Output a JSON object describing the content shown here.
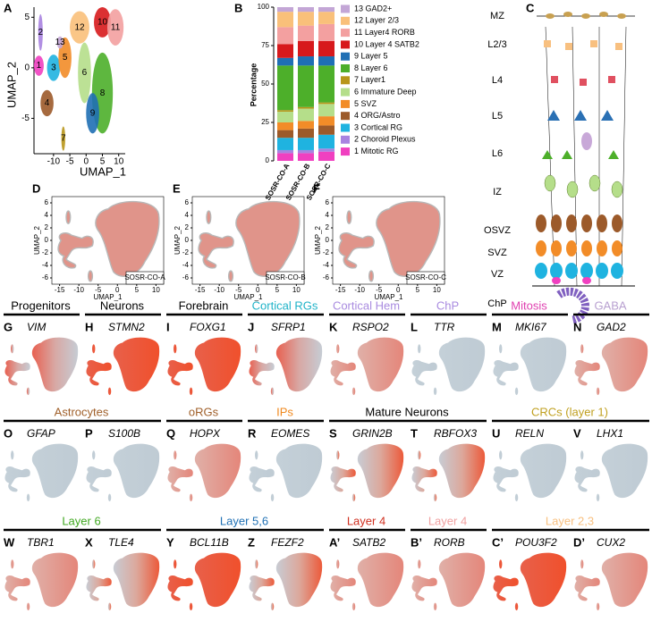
{
  "umap_a": {
    "letter": "A",
    "xlabel": "UMAP_1",
    "ylabel": "UMAP_2",
    "xlim": [
      -16,
      12
    ],
    "ylim": [
      -8.5,
      6
    ],
    "xticks": [
      -10,
      -5,
      0,
      5,
      10
    ],
    "yticks": [
      -5,
      0,
      5
    ],
    "cluster_labels": [
      "1",
      "2",
      "3",
      "4",
      "5",
      "6",
      "7",
      "8",
      "9",
      "10",
      "11",
      "12",
      "13"
    ]
  },
  "chart_data": {
    "type": "bar",
    "stacked": true,
    "letter": "B",
    "ylabel": "Percentage",
    "ylim": [
      0,
      100
    ],
    "yticks": [
      0,
      25,
      50,
      75,
      100
    ],
    "categories": [
      "SOSR-CO-A",
      "SOSR-CO-B",
      "SOSR-CO-C"
    ],
    "series": [
      {
        "name": "13 GAD2+",
        "color": "#c3a6d6",
        "values": [
          3,
          3,
          3
        ]
      },
      {
        "name": "12 Layer 2/3",
        "color": "#f9c07a",
        "values": [
          10,
          9,
          8
        ]
      },
      {
        "name": "11 Layer4 RORB",
        "color": "#f3a0a0",
        "values": [
          11,
          10,
          11
        ]
      },
      {
        "name": "10 Layer 4 SATB2",
        "color": "#d7191c",
        "values": [
          9,
          10,
          10
        ]
      },
      {
        "name": "9 Layer 5",
        "color": "#1f6fb4",
        "values": [
          5,
          6,
          6
        ]
      },
      {
        "name": "8 Layer 6",
        "color": "#4daf2a",
        "values": [
          29,
          27,
          24
        ]
      },
      {
        "name": "7 Layer1",
        "color": "#b8961a",
        "values": [
          1,
          1,
          1
        ]
      },
      {
        "name": "6 Immature Deep",
        "color": "#b5de8a",
        "values": [
          7,
          8,
          8
        ]
      },
      {
        "name": "5 SVZ",
        "color": "#f28c28",
        "values": [
          5,
          5,
          6
        ]
      },
      {
        "name": "4 ORG/Astro",
        "color": "#9c5a2a",
        "values": [
          5,
          6,
          6
        ]
      },
      {
        "name": "3 Cortical RG",
        "color": "#1fb3e0",
        "values": [
          8,
          8,
          9
        ]
      },
      {
        "name": "2 Choroid Plexus",
        "color": "#a883e0",
        "values": [
          2,
          2,
          2
        ]
      },
      {
        "name": "1 Mitotic RG",
        "color": "#f040c0",
        "values": [
          5,
          5,
          6
        ]
      }
    ]
  },
  "diagram_c": {
    "letter": "C",
    "layers": [
      "MZ",
      "L2/3",
      "L4",
      "L5",
      "L6",
      "IZ",
      "OSVZ",
      "SVZ",
      "VZ",
      "ChP"
    ]
  },
  "sample_umaps": {
    "letters": [
      "D",
      "E",
      "F"
    ],
    "samples": [
      "SOSR-CO-A",
      "SOSR-CO-B",
      "SOSR-CO-C"
    ],
    "xlabel": "UMAP_1",
    "ylabel": "UMAP_2",
    "xlim": [
      -17,
      12
    ],
    "ylim": [
      -7,
      7
    ],
    "xticks": [
      -15,
      -10,
      -5,
      0,
      5,
      10
    ],
    "yticks": [
      -6,
      -4,
      -2,
      0,
      2,
      4,
      6
    ]
  },
  "marker_rows": [
    {
      "groups": [
        {
          "title": "Progenitors",
          "color": "#000000"
        },
        {
          "title": "Neurons",
          "color": "#000000"
        },
        {
          "title": "Forebrain",
          "color": "#000000"
        },
        {
          "title": "Cortical RGs",
          "color": "#1fb3c8"
        },
        {
          "title": "Cortical Hem",
          "color": "#a98be0"
        },
        {
          "title": "ChP",
          "color": "#a98be0"
        },
        {
          "title": "Mitosis",
          "color": "#e040b0"
        },
        {
          "title": "GABA",
          "color": "#b8a0d0"
        }
      ],
      "panels": [
        {
          "letter": "G",
          "gene": "VIM"
        },
        {
          "letter": "H",
          "gene": "STMN2"
        },
        {
          "letter": "I",
          "gene": "FOXG1"
        },
        {
          "letter": "J",
          "gene": "SFRP1"
        },
        {
          "letter": "K",
          "gene": "RSPO2"
        },
        {
          "letter": "L",
          "gene": "TTR"
        },
        {
          "letter": "M",
          "gene": "MKI67"
        },
        {
          "letter": "N",
          "gene": "GAD2"
        }
      ]
    },
    {
      "groups": [
        {
          "title": "Astrocytes",
          "color": "#a0602a"
        },
        {
          "title": "oRGs",
          "color": "#a0602a"
        },
        {
          "title": "IPs",
          "color": "#f08a20"
        },
        {
          "title": "Mature Neurons",
          "color": "#000000"
        },
        {
          "title": "CRCs (layer 1)",
          "color": "#c0a020"
        }
      ],
      "panels": [
        {
          "letter": "O",
          "gene": "GFAP"
        },
        {
          "letter": "P",
          "gene": "S100B"
        },
        {
          "letter": "Q",
          "gene": "HOPX"
        },
        {
          "letter": "R",
          "gene": "EOMES"
        },
        {
          "letter": "S",
          "gene": "GRIN2B"
        },
        {
          "letter": "T",
          "gene": "RBFOX3"
        },
        {
          "letter": "U",
          "gene": "RELN"
        },
        {
          "letter": "V",
          "gene": "LHX1"
        }
      ]
    },
    {
      "groups": [
        {
          "title": "Layer 6",
          "color": "#40a820"
        },
        {
          "title": "Layer 5,6",
          "color": "#1f70b4"
        },
        {
          "title": "Layer 4",
          "color": "#d03020"
        },
        {
          "title": "Layer 4",
          "color": "#f0a0a0"
        },
        {
          "title": "Layer 2,3",
          "color": "#f8c080"
        }
      ],
      "panels": [
        {
          "letter": "W",
          "gene": "TBR1"
        },
        {
          "letter": "X",
          "gene": "TLE4"
        },
        {
          "letter": "Y",
          "gene": "BCL11B"
        },
        {
          "letter": "Z",
          "gene": "FEZF2"
        },
        {
          "letter": "A’",
          "gene": "SATB2"
        },
        {
          "letter": "B’",
          "gene": "RORB"
        },
        {
          "letter": "C’",
          "gene": "POU3F2"
        },
        {
          "letter": "D’",
          "gene": "CUX2"
        }
      ]
    }
  ]
}
